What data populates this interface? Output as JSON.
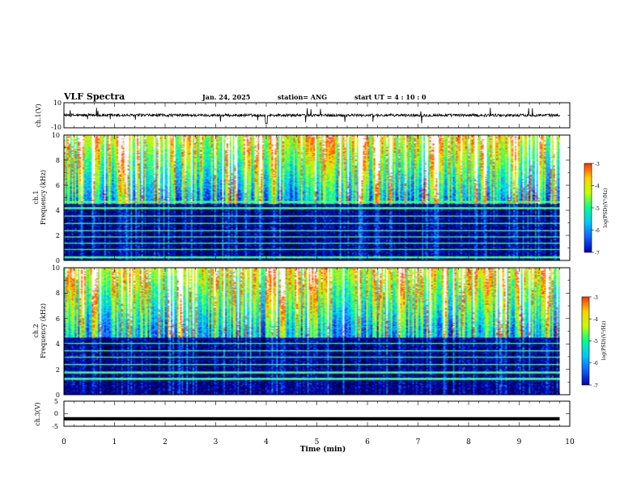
{
  "header": {
    "title": "VLF Spectra",
    "date": "Jan. 24, 2025",
    "station": "station= ANG",
    "start": "start UT =  4 : 10 : 0"
  },
  "chart_data": [
    {
      "type": "line",
      "panel": "ch1-waveform",
      "ylabel": "ch.1(V)",
      "ylim": [
        -10,
        10
      ],
      "yticks": [
        "10",
        "-10"
      ],
      "xlim": [
        0,
        10
      ],
      "description_level": 0,
      "trace_color": "#000000"
    },
    {
      "type": "heatmap",
      "panel": "ch1-spectrogram",
      "ylabel_line1": "ch.1",
      "ylabel_line2": "Frequency (kHz)",
      "ylim": [
        0,
        10
      ],
      "yticks": [
        "0",
        "2",
        "4",
        "6",
        "8",
        "10"
      ],
      "xlim": [
        0,
        10
      ],
      "data_end_min": 9.8,
      "colorbar": {
        "label": "log(PSD)(V²/Hz)",
        "range": [
          -7,
          -3
        ],
        "ticks": [
          "-3",
          "-4",
          "-5",
          "-6",
          "-7"
        ]
      },
      "bands_khz": [
        0.3,
        0.9,
        1.4,
        1.9,
        2.4,
        3.0,
        3.6,
        4.2,
        4.7
      ]
    },
    {
      "type": "heatmap",
      "panel": "ch2-spectrogram",
      "ylabel_line1": "ch.2",
      "ylabel_line2": "Frequency (kHz)",
      "ylim": [
        0,
        10
      ],
      "yticks": [
        "0",
        "2",
        "4",
        "6",
        "8",
        "10"
      ],
      "xlim": [
        0,
        10
      ],
      "data_end_min": 9.8,
      "colorbar": {
        "label": "log(PSD)(V²/Hz)",
        "range": [
          -7,
          -3
        ],
        "ticks": [
          "-3",
          "-4",
          "-5",
          "-6",
          "-7"
        ]
      },
      "bands_khz": [
        1.3,
        1.8,
        2.4,
        3.0,
        3.5,
        4.1
      ]
    },
    {
      "type": "line",
      "panel": "ch3-waveform",
      "ylabel": "ch.3(V)",
      "ylim": [
        -5,
        5
      ],
      "yticks": [
        "5",
        "0",
        "-5"
      ],
      "xlim": [
        0,
        10
      ],
      "constant_level": -2,
      "trace_color": "#000000"
    }
  ],
  "xaxis": {
    "label": "Time (min)",
    "ticks": [
      "0",
      "1",
      "2",
      "3",
      "4",
      "5",
      "6",
      "7",
      "8",
      "9",
      "10"
    ]
  },
  "colors": {
    "background": "#ffffff",
    "axes": "#000000",
    "colormap": [
      "#000040",
      "#0000b0",
      "#1060ff",
      "#00c8ff",
      "#00ff90",
      "#c0ff00",
      "#ffd000",
      "#ff3000",
      "#ffffff"
    ]
  }
}
